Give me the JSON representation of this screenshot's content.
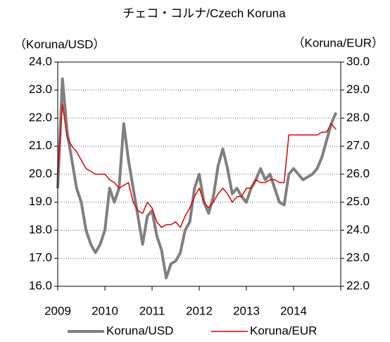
{
  "chart_data": {
    "type": "line",
    "title": "チェコ・コルナ/Czech Koruna",
    "y_label": "（Koruna/USD）",
    "y2_label": "（Koruna/EUR）",
    "x": [
      2009.0,
      2009.1,
      2009.2,
      2009.3,
      2009.4,
      2009.5,
      2009.6,
      2009.7,
      2009.8,
      2009.9,
      2010.0,
      2010.1,
      2010.2,
      2010.3,
      2010.4,
      2010.5,
      2010.6,
      2010.7,
      2010.8,
      2010.9,
      2011.0,
      2011.1,
      2011.2,
      2011.3,
      2011.4,
      2011.5,
      2011.6,
      2011.7,
      2011.8,
      2011.9,
      2012.0,
      2012.1,
      2012.2,
      2012.3,
      2012.4,
      2012.5,
      2012.6,
      2012.7,
      2012.8,
      2012.9,
      2013.0,
      2013.1,
      2013.2,
      2013.3,
      2013.4,
      2013.5,
      2013.6,
      2013.7,
      2013.8,
      2013.9,
      2014.0,
      2014.1,
      2014.2,
      2014.3,
      2014.4,
      2014.5,
      2014.6,
      2014.7,
      2014.8,
      2014.9
    ],
    "series": [
      {
        "name": "Koruna/USD",
        "color": "#808080",
        "axis": "y",
        "values": [
          19.5,
          23.4,
          21.5,
          20.5,
          19.5,
          19.0,
          18.0,
          17.5,
          17.2,
          17.5,
          18.0,
          19.5,
          19.0,
          19.5,
          21.8,
          20.5,
          19.5,
          18.5,
          17.5,
          18.5,
          18.7,
          17.8,
          17.3,
          16.3,
          16.8,
          16.9,
          17.2,
          18.0,
          18.3,
          19.5,
          20.0,
          19.0,
          18.6,
          19.2,
          20.3,
          20.9,
          20.2,
          19.3,
          19.5,
          19.2,
          19.0,
          19.5,
          19.8,
          20.2,
          19.8,
          20.0,
          19.5,
          19.0,
          18.9,
          20.0,
          20.2,
          20.0,
          19.8,
          19.9,
          20.0,
          20.2,
          20.6,
          21.2,
          21.8,
          22.2
        ]
      },
      {
        "name": "Koruna/EUR",
        "color": "#e00000",
        "axis": "y2",
        "values": [
          26.0,
          28.5,
          27.3,
          27.0,
          26.8,
          26.5,
          26.2,
          26.1,
          26.0,
          26.0,
          26.0,
          25.8,
          25.7,
          25.5,
          25.6,
          25.7,
          25.0,
          24.7,
          24.6,
          25.0,
          24.8,
          24.3,
          24.1,
          24.2,
          24.2,
          24.3,
          24.1,
          24.5,
          24.8,
          25.2,
          25.5,
          25.0,
          24.8,
          25.0,
          25.3,
          25.5,
          25.3,
          25.0,
          25.2,
          25.2,
          25.5,
          25.5,
          25.8,
          25.7,
          25.7,
          25.8,
          25.8,
          25.7,
          25.7,
          27.4,
          27.4,
          27.4,
          27.4,
          27.4,
          27.4,
          27.4,
          27.5,
          27.5,
          27.8,
          27.6
        ]
      }
    ],
    "xlim": [
      2009,
      2015
    ],
    "xticks": [
      2009,
      2010,
      2011,
      2012,
      2013,
      2014
    ],
    "ylim": [
      16,
      24
    ],
    "yticks": [
      {
        "value": 16,
        "label": "16.0"
      },
      {
        "value": 17,
        "label": "17.0"
      },
      {
        "value": 18,
        "label": "18.0"
      },
      {
        "value": 19,
        "label": "19.0"
      },
      {
        "value": 20,
        "label": "20.0"
      },
      {
        "value": 21,
        "label": "21.0"
      },
      {
        "value": 22,
        "label": "22.0"
      },
      {
        "value": 23,
        "label": "23.0"
      },
      {
        "value": 24,
        "label": "24.0"
      }
    ],
    "y2lim": [
      22,
      30
    ],
    "y2ticks": [
      {
        "value": 22,
        "label": "22.0"
      },
      {
        "value": 23,
        "label": "23.0"
      },
      {
        "value": 24,
        "label": "24.0"
      },
      {
        "value": 25,
        "label": "25.0"
      },
      {
        "value": 26,
        "label": "26.0"
      },
      {
        "value": 27,
        "label": "27.0"
      },
      {
        "value": 28,
        "label": "28.0"
      },
      {
        "value": 29,
        "label": "29.0"
      },
      {
        "value": 30,
        "label": "30.0"
      }
    ],
    "grid": true,
    "legend": "bottom"
  }
}
